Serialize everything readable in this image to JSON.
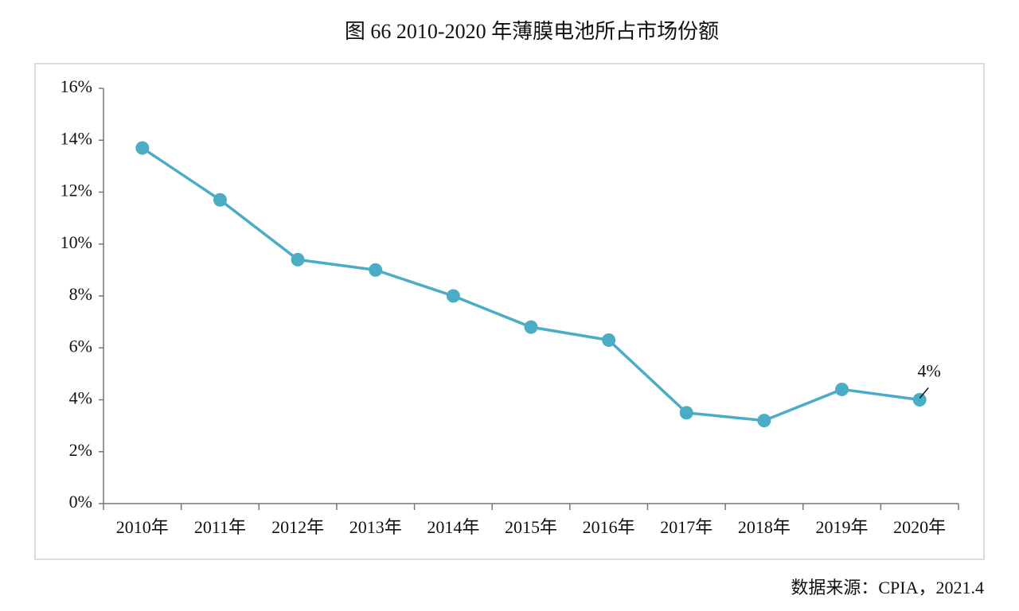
{
  "chart_data": {
    "type": "line",
    "title": "图 66 2010-2020 年薄膜电池所占市场份额",
    "categories": [
      "2010年",
      "2011年",
      "2012年",
      "2013年",
      "2014年",
      "2015年",
      "2016年",
      "2017年",
      "2018年",
      "2019年",
      "2020年"
    ],
    "values": [
      13.7,
      11.7,
      9.4,
      9.0,
      8.0,
      6.8,
      6.3,
      3.5,
      3.2,
      4.4,
      4.0
    ],
    "value_labels": [
      null,
      null,
      null,
      null,
      null,
      null,
      null,
      null,
      null,
      null,
      "4%"
    ],
    "color": "#4bacc6",
    "ylim": [
      0,
      16
    ],
    "yticks": [
      {
        "value": 0,
        "label": "0%"
      },
      {
        "value": 2,
        "label": "2%"
      },
      {
        "value": 4,
        "label": "4%"
      },
      {
        "value": 6,
        "label": "6%"
      },
      {
        "value": 8,
        "label": "8%"
      },
      {
        "value": 10,
        "label": "10%"
      },
      {
        "value": 12,
        "label": "12%"
      },
      {
        "value": 14,
        "label": "14%"
      },
      {
        "value": 16,
        "label": "16%"
      }
    ],
    "grid": false,
    "source": "数据来源：CPIA，2021.4"
  }
}
